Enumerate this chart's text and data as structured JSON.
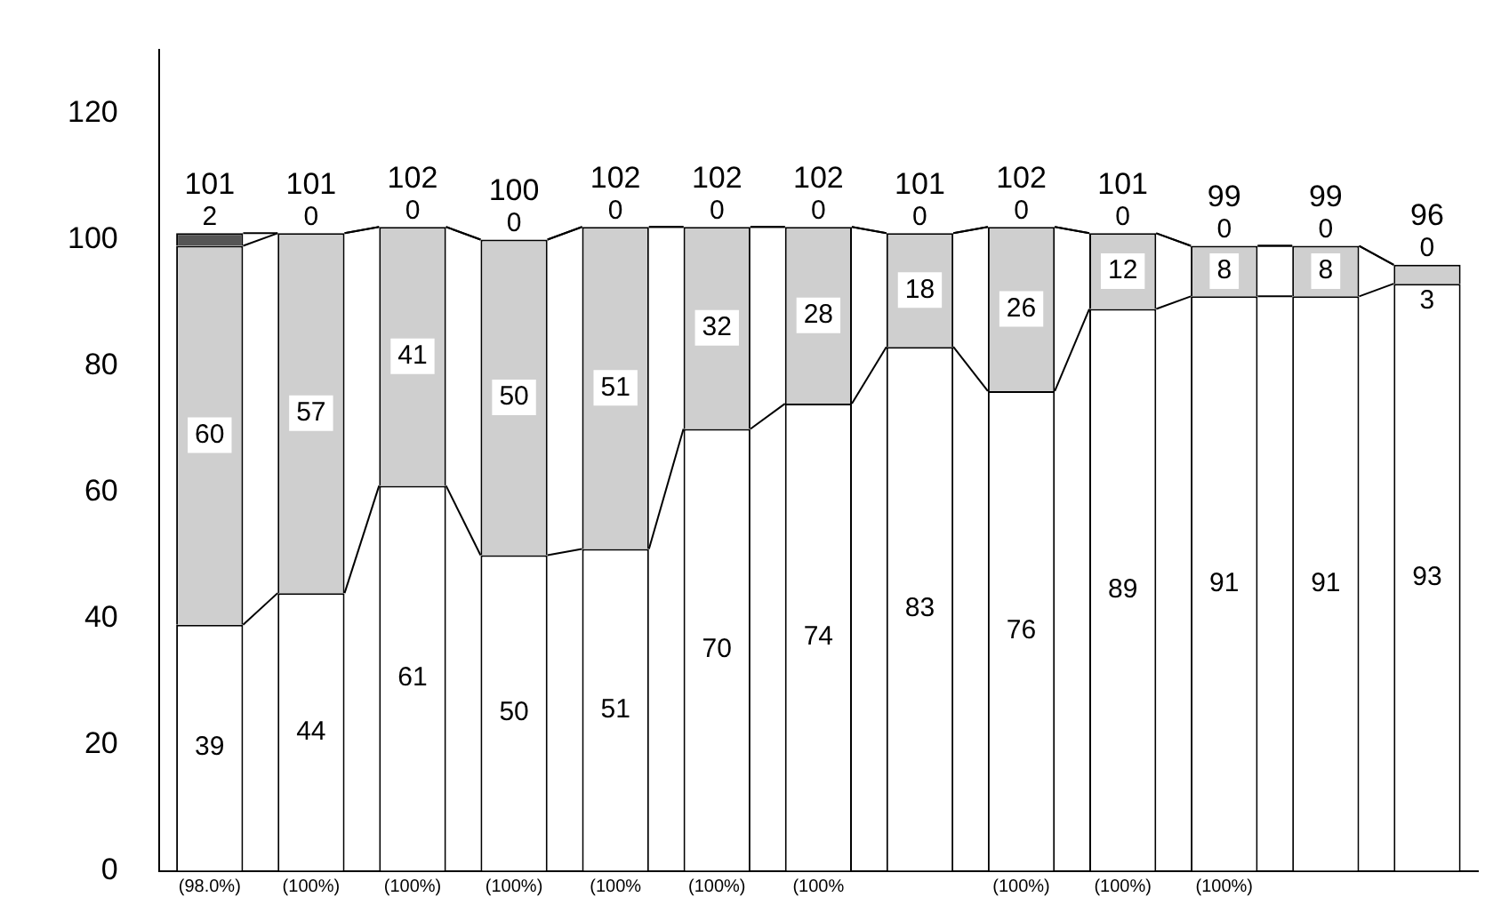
{
  "chart_data": {
    "type": "bar",
    "stacked": true,
    "categories": [
      "(98.0%)",
      "(100%)",
      "(100%)",
      "(100%)",
      "(100%",
      "(100%)",
      "(100%",
      null,
      "(100%)",
      "(100%)",
      "(100%)",
      null,
      null
    ],
    "series": [
      {
        "color": "#ffffff",
        "values": [
          39,
          44,
          61,
          50,
          51,
          70,
          74,
          83,
          76,
          89,
          91,
          91,
          93
        ]
      },
      {
        "color": "#cfcfcf",
        "values": [
          60,
          57,
          41,
          50,
          51,
          32,
          28,
          18,
          26,
          12,
          8,
          8,
          3
        ]
      },
      {
        "color": "#555555",
        "values": [
          2,
          0,
          0,
          0,
          0,
          0,
          0,
          0,
          0,
          0,
          0,
          0,
          0
        ]
      }
    ],
    "totals": [
      "101",
      "101",
      "102",
      "100",
      "102",
      "102",
      "102",
      "101",
      "102",
      "101",
      "99",
      "99",
      "96"
    ],
    "ylim": [
      0,
      130
    ],
    "yticks": [
      0,
      20,
      40,
      60,
      80,
      100,
      120
    ],
    "data_labels": true,
    "grid": false,
    "legend": false
  }
}
